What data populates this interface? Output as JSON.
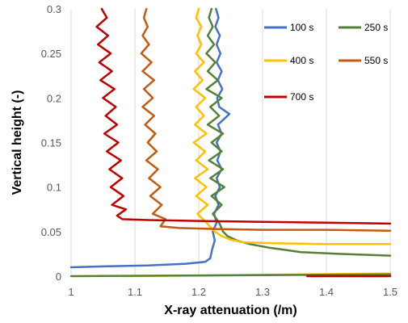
{
  "chart_data": {
    "type": "line",
    "title": "",
    "xlabel": "X-ray attenuation (/m)",
    "ylabel": "Vertical height (-)",
    "xlim": [
      1,
      1.5
    ],
    "ylim": [
      0,
      0.3
    ],
    "x_ticks": [
      "1",
      "1.1",
      "1.2",
      "1.3",
      "1.4",
      "1.5"
    ],
    "y_ticks": [
      "0",
      "0.05",
      "0.1",
      "0.15",
      "0.2",
      "0.25",
      "0.3"
    ],
    "grid": "vertical",
    "legend_position": "top-right",
    "series": [
      {
        "name": "100 s",
        "color": "#4472C4",
        "points": [
          [
            1.0,
            0.01
          ],
          [
            1.05,
            0.011
          ],
          [
            1.12,
            0.012
          ],
          [
            1.18,
            0.014
          ],
          [
            1.21,
            0.016
          ],
          [
            1.218,
            0.02
          ],
          [
            1.221,
            0.03
          ],
          [
            1.225,
            0.04
          ],
          [
            1.222,
            0.05
          ],
          [
            1.228,
            0.06
          ],
          [
            1.224,
            0.07
          ],
          [
            1.231,
            0.08
          ],
          [
            1.226,
            0.09
          ],
          [
            1.233,
            0.1
          ],
          [
            1.228,
            0.11
          ],
          [
            1.236,
            0.12
          ],
          [
            1.229,
            0.13
          ],
          [
            1.234,
            0.14
          ],
          [
            1.228,
            0.15
          ],
          [
            1.236,
            0.16
          ],
          [
            1.23,
            0.17
          ],
          [
            1.248,
            0.182
          ],
          [
            1.232,
            0.19
          ],
          [
            1.229,
            0.2
          ],
          [
            1.237,
            0.21
          ],
          [
            1.23,
            0.22
          ],
          [
            1.236,
            0.23
          ],
          [
            1.228,
            0.24
          ],
          [
            1.234,
            0.25
          ],
          [
            1.228,
            0.26
          ],
          [
            1.233,
            0.27
          ],
          [
            1.226,
            0.28
          ],
          [
            1.231,
            0.29
          ],
          [
            1.227,
            0.3
          ]
        ]
      },
      {
        "name": "250 s",
        "color": "#548235",
        "points": [
          [
            1.5,
            0.023
          ],
          [
            1.42,
            0.025
          ],
          [
            1.36,
            0.027
          ],
          [
            1.33,
            0.03
          ],
          [
            1.31,
            0.032
          ],
          [
            1.28,
            0.036
          ],
          [
            1.26,
            0.04
          ],
          [
            1.245,
            0.045
          ],
          [
            1.238,
            0.05
          ],
          [
            1.232,
            0.06
          ],
          [
            1.222,
            0.07
          ],
          [
            1.236,
            0.08
          ],
          [
            1.22,
            0.09
          ],
          [
            1.24,
            0.1
          ],
          [
            1.218,
            0.11
          ],
          [
            1.238,
            0.12
          ],
          [
            1.216,
            0.13
          ],
          [
            1.236,
            0.14
          ],
          [
            1.22,
            0.15
          ],
          [
            1.238,
            0.16
          ],
          [
            1.214,
            0.17
          ],
          [
            1.232,
            0.18
          ],
          [
            1.218,
            0.19
          ],
          [
            1.236,
            0.2
          ],
          [
            1.212,
            0.21
          ],
          [
            1.23,
            0.22
          ],
          [
            1.214,
            0.23
          ],
          [
            1.226,
            0.24
          ],
          [
            1.212,
            0.25
          ],
          [
            1.224,
            0.26
          ],
          [
            1.214,
            0.27
          ],
          [
            1.222,
            0.28
          ],
          [
            1.216,
            0.29
          ],
          [
            1.22,
            0.3
          ]
        ]
      },
      {
        "name": "400 s",
        "color": "#FFC000",
        "points": [
          [
            1.5,
            0.036
          ],
          [
            1.4,
            0.036
          ],
          [
            1.32,
            0.037
          ],
          [
            1.27,
            0.038
          ],
          [
            1.25,
            0.041
          ],
          [
            1.236,
            0.045
          ],
          [
            1.225,
            0.05
          ],
          [
            1.212,
            0.06
          ],
          [
            1.198,
            0.07
          ],
          [
            1.214,
            0.08
          ],
          [
            1.196,
            0.09
          ],
          [
            1.212,
            0.1
          ],
          [
            1.194,
            0.11
          ],
          [
            1.214,
            0.12
          ],
          [
            1.196,
            0.13
          ],
          [
            1.21,
            0.14
          ],
          [
            1.192,
            0.15
          ],
          [
            1.212,
            0.16
          ],
          [
            1.194,
            0.17
          ],
          [
            1.208,
            0.18
          ],
          [
            1.196,
            0.19
          ],
          [
            1.21,
            0.2
          ],
          [
            1.192,
            0.21
          ],
          [
            1.206,
            0.22
          ],
          [
            1.194,
            0.23
          ],
          [
            1.208,
            0.24
          ],
          [
            1.196,
            0.25
          ],
          [
            1.204,
            0.26
          ],
          [
            1.198,
            0.27
          ],
          [
            1.204,
            0.28
          ],
          [
            1.196,
            0.29
          ],
          [
            1.2,
            0.3
          ]
        ]
      },
      {
        "name": "550 s",
        "color": "#C55A11",
        "points": [
          [
            1.5,
            0.051
          ],
          [
            1.4,
            0.052
          ],
          [
            1.3,
            0.052
          ],
          [
            1.22,
            0.053
          ],
          [
            1.17,
            0.054
          ],
          [
            1.14,
            0.056
          ],
          [
            1.148,
            0.064
          ],
          [
            1.128,
            0.07
          ],
          [
            1.142,
            0.08
          ],
          [
            1.124,
            0.09
          ],
          [
            1.14,
            0.1
          ],
          [
            1.122,
            0.11
          ],
          [
            1.136,
            0.12
          ],
          [
            1.118,
            0.13
          ],
          [
            1.134,
            0.14
          ],
          [
            1.12,
            0.15
          ],
          [
            1.132,
            0.16
          ],
          [
            1.116,
            0.17
          ],
          [
            1.13,
            0.18
          ],
          [
            1.112,
            0.19
          ],
          [
            1.128,
            0.2
          ],
          [
            1.114,
            0.21
          ],
          [
            1.13,
            0.22
          ],
          [
            1.112,
            0.23
          ],
          [
            1.126,
            0.24
          ],
          [
            1.11,
            0.25
          ],
          [
            1.122,
            0.26
          ],
          [
            1.112,
            0.27
          ],
          [
            1.12,
            0.28
          ],
          [
            1.114,
            0.29
          ],
          [
            1.118,
            0.3
          ]
        ]
      },
      {
        "name": "700 s",
        "color": "#C00000",
        "points": [
          [
            1.5,
            0.059
          ],
          [
            1.4,
            0.06
          ],
          [
            1.3,
            0.061
          ],
          [
            1.2,
            0.062
          ],
          [
            1.12,
            0.063
          ],
          [
            1.08,
            0.064
          ],
          [
            1.072,
            0.068
          ],
          [
            1.086,
            0.075
          ],
          [
            1.064,
            0.08
          ],
          [
            1.082,
            0.09
          ],
          [
            1.062,
            0.1
          ],
          [
            1.08,
            0.11
          ],
          [
            1.06,
            0.12
          ],
          [
            1.078,
            0.13
          ],
          [
            1.056,
            0.14
          ],
          [
            1.074,
            0.15
          ],
          [
            1.052,
            0.16
          ],
          [
            1.072,
            0.17
          ],
          [
            1.054,
            0.18
          ],
          [
            1.07,
            0.19
          ],
          [
            1.05,
            0.2
          ],
          [
            1.068,
            0.21
          ],
          [
            1.046,
            0.22
          ],
          [
            1.064,
            0.23
          ],
          [
            1.044,
            0.24
          ],
          [
            1.062,
            0.25
          ],
          [
            1.042,
            0.26
          ],
          [
            1.058,
            0.27
          ],
          [
            1.04,
            0.28
          ],
          [
            1.056,
            0.29
          ],
          [
            1.048,
            0.3
          ]
        ]
      }
    ],
    "baseline_lines": [
      {
        "color": "#FFC000",
        "points": [
          [
            1.08,
            0.0
          ],
          [
            1.5,
            0.003
          ]
        ]
      },
      {
        "color": "#548235",
        "points": [
          [
            1.0,
            0.0
          ],
          [
            1.5,
            0.002
          ]
        ]
      },
      {
        "color": "#C00000",
        "points": [
          [
            1.37,
            0.0
          ],
          [
            1.5,
            0.0
          ]
        ]
      }
    ]
  }
}
